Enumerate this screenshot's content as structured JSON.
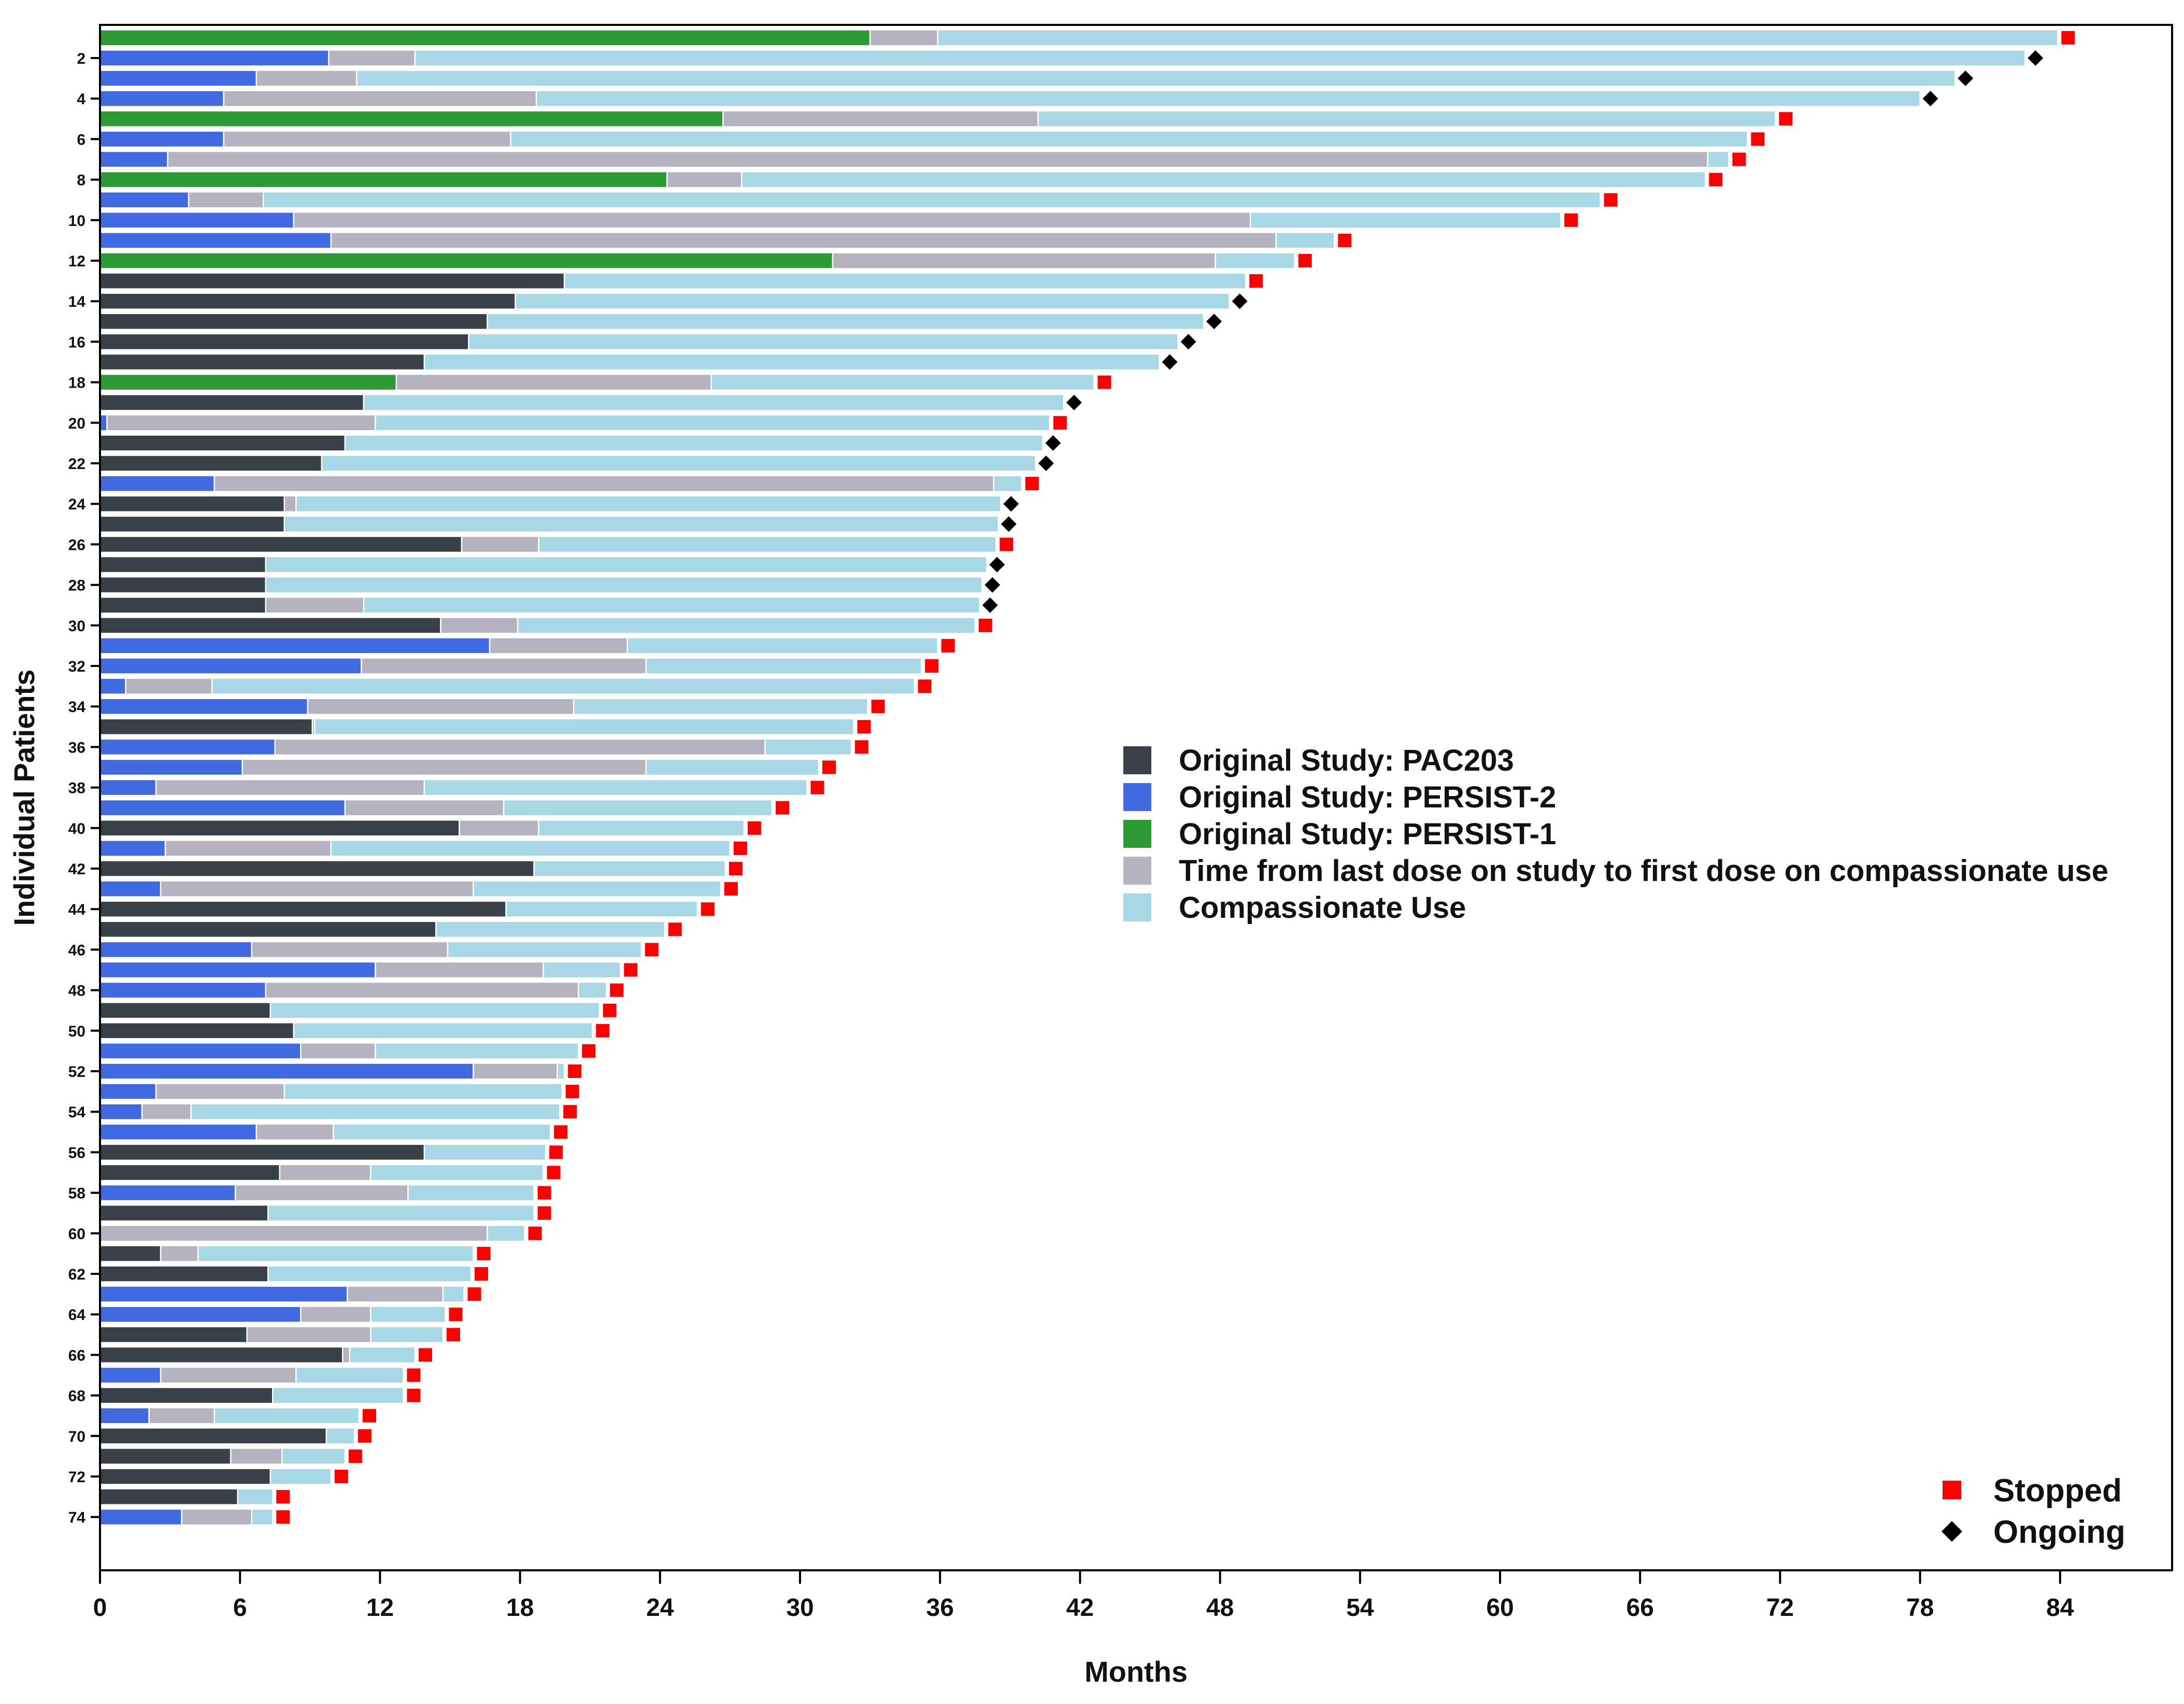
{
  "chart_data": {
    "type": "bar",
    "orientation": "horizontal-stacked",
    "title": "",
    "xlabel": "Months",
    "ylabel": "Individual Patients",
    "xlim": [
      0,
      88.8
    ],
    "xticks": [
      0,
      6,
      12,
      18,
      24,
      30,
      36,
      42,
      48,
      54,
      60,
      66,
      72,
      78,
      84
    ],
    "ytick_labels": [
      "2",
      "4",
      "6",
      "8",
      "10",
      "12",
      "14",
      "16",
      "18",
      "20",
      "22",
      "24",
      "26",
      "28",
      "30",
      "32",
      "34",
      "36",
      "38",
      "40",
      "42",
      "44",
      "46",
      "48",
      "50",
      "52",
      "54",
      "56",
      "58",
      "60",
      "62",
      "64",
      "66",
      "68",
      "70",
      "72",
      "74"
    ],
    "ytick_patients": [
      2,
      4,
      6,
      8,
      10,
      12,
      14,
      16,
      18,
      20,
      22,
      24,
      26,
      28,
      30,
      32,
      34,
      36,
      38,
      40,
      42,
      44,
      46,
      48,
      50,
      52,
      54,
      56,
      58,
      60,
      62,
      64,
      66,
      68,
      70,
      72,
      74
    ],
    "colors": {
      "PAC203": "#3a4048",
      "PERSIST-2": "#4169e1",
      "PERSIST-1": "#2e9a36",
      "gap": "#b4b3bf",
      "cu": "#a8d8e6",
      "stopped": "#ff0000",
      "ongoing": "#000000"
    },
    "legend": [
      {
        "key": "PAC203",
        "label": "Original Study: PAC203"
      },
      {
        "key": "PERSIST-2",
        "label": "Original Study: PERSIST-2"
      },
      {
        "key": "PERSIST-1",
        "label": "Original Study: PERSIST-1"
      },
      {
        "key": "gap",
        "label": "Time from last dose on study to first dose on compassionate use"
      },
      {
        "key": "cu",
        "label": "Compassionate Use"
      }
    ],
    "marker_legend": [
      {
        "key": "stopped",
        "label": "Stopped"
      },
      {
        "key": "ongoing",
        "label": "Ongoing"
      }
    ],
    "patients": [
      {
        "id": 1,
        "study": "PERSIST-1",
        "study_end": 33.0,
        "gap_end": 35.9,
        "cu_end": 83.9,
        "status": "stopped"
      },
      {
        "id": 2,
        "study": "PERSIST-2",
        "study_end": 9.8,
        "gap_end": 13.5,
        "cu_end": 82.5,
        "status": "ongoing"
      },
      {
        "id": 3,
        "study": "PERSIST-2",
        "study_end": 6.7,
        "gap_end": 11.0,
        "cu_end": 79.5,
        "status": "ongoing"
      },
      {
        "id": 4,
        "study": "PERSIST-2",
        "study_end": 5.3,
        "gap_end": 18.7,
        "cu_end": 78.0,
        "status": "ongoing"
      },
      {
        "id": 5,
        "study": "PERSIST-1",
        "study_end": 26.7,
        "gap_end": 40.2,
        "cu_end": 71.8,
        "status": "stopped"
      },
      {
        "id": 6,
        "study": "PERSIST-2",
        "study_end": 5.3,
        "gap_end": 17.6,
        "cu_end": 70.6,
        "status": "stopped"
      },
      {
        "id": 7,
        "study": "PERSIST-2",
        "study_end": 2.9,
        "gap_end": 68.9,
        "cu_end": 69.8,
        "status": "stopped"
      },
      {
        "id": 8,
        "study": "PERSIST-1",
        "study_end": 24.3,
        "gap_end": 27.5,
        "cu_end": 68.8,
        "status": "stopped"
      },
      {
        "id": 9,
        "study": "PERSIST-2",
        "study_end": 3.8,
        "gap_end": 7.0,
        "cu_end": 64.3,
        "status": "stopped"
      },
      {
        "id": 10,
        "study": "PERSIST-2",
        "study_end": 8.3,
        "gap_end": 49.3,
        "cu_end": 62.6,
        "status": "stopped"
      },
      {
        "id": 11,
        "study": "PERSIST-2",
        "study_end": 9.9,
        "gap_end": 50.4,
        "cu_end": 52.9,
        "status": "stopped"
      },
      {
        "id": 12,
        "study": "PERSIST-1",
        "study_end": 31.4,
        "gap_end": 47.8,
        "cu_end": 51.2,
        "status": "stopped"
      },
      {
        "id": 13,
        "study": "PAC203",
        "study_end": 19.9,
        "gap_end": 19.9,
        "cu_end": 49.1,
        "status": "stopped"
      },
      {
        "id": 14,
        "study": "PAC203",
        "study_end": 17.8,
        "gap_end": 17.8,
        "cu_end": 48.4,
        "status": "ongoing"
      },
      {
        "id": 15,
        "study": "PAC203",
        "study_end": 16.6,
        "gap_end": 16.6,
        "cu_end": 47.3,
        "status": "ongoing"
      },
      {
        "id": 16,
        "study": "PAC203",
        "study_end": 15.8,
        "gap_end": 15.8,
        "cu_end": 46.2,
        "status": "ongoing"
      },
      {
        "id": 17,
        "study": "PAC203",
        "study_end": 13.9,
        "gap_end": 13.9,
        "cu_end": 45.4,
        "status": "ongoing"
      },
      {
        "id": 18,
        "study": "PERSIST-1",
        "study_end": 12.7,
        "gap_end": 26.2,
        "cu_end": 42.6,
        "status": "stopped"
      },
      {
        "id": 19,
        "study": "PAC203",
        "study_end": 11.3,
        "gap_end": 11.3,
        "cu_end": 41.3,
        "status": "ongoing"
      },
      {
        "id": 20,
        "study": "PERSIST-2",
        "study_end": 0.3,
        "gap_end": 11.8,
        "cu_end": 40.7,
        "status": "stopped"
      },
      {
        "id": 21,
        "study": "PAC203",
        "study_end": 10.5,
        "gap_end": 10.5,
        "cu_end": 40.4,
        "status": "ongoing"
      },
      {
        "id": 22,
        "study": "PAC203",
        "study_end": 9.5,
        "gap_end": 9.5,
        "cu_end": 40.1,
        "status": "ongoing"
      },
      {
        "id": 23,
        "study": "PERSIST-2",
        "study_end": 4.9,
        "gap_end": 38.3,
        "cu_end": 39.5,
        "status": "stopped"
      },
      {
        "id": 24,
        "study": "PAC203",
        "study_end": 7.9,
        "gap_end": 8.4,
        "cu_end": 38.6,
        "status": "ongoing"
      },
      {
        "id": 25,
        "study": "PAC203",
        "study_end": 7.9,
        "gap_end": 7.9,
        "cu_end": 38.5,
        "status": "ongoing"
      },
      {
        "id": 26,
        "study": "PAC203",
        "study_end": 15.5,
        "gap_end": 18.8,
        "cu_end": 38.4,
        "status": "stopped"
      },
      {
        "id": 27,
        "study": "PAC203",
        "study_end": 7.1,
        "gap_end": 7.1,
        "cu_end": 38.0,
        "status": "ongoing"
      },
      {
        "id": 28,
        "study": "PAC203",
        "study_end": 7.1,
        "gap_end": 7.1,
        "cu_end": 37.8,
        "status": "ongoing"
      },
      {
        "id": 29,
        "study": "PAC203",
        "study_end": 7.1,
        "gap_end": 11.3,
        "cu_end": 37.7,
        "status": "ongoing"
      },
      {
        "id": 30,
        "study": "PAC203",
        "study_end": 14.6,
        "gap_end": 17.9,
        "cu_end": 37.5,
        "status": "stopped"
      },
      {
        "id": 31,
        "study": "PERSIST-2",
        "study_end": 16.7,
        "gap_end": 22.6,
        "cu_end": 35.9,
        "status": "stopped"
      },
      {
        "id": 32,
        "study": "PERSIST-2",
        "study_end": 11.2,
        "gap_end": 23.4,
        "cu_end": 35.2,
        "status": "stopped"
      },
      {
        "id": 33,
        "study": "PERSIST-2",
        "study_end": 1.1,
        "gap_end": 4.8,
        "cu_end": 34.9,
        "status": "stopped"
      },
      {
        "id": 34,
        "study": "PERSIST-2",
        "study_end": 8.9,
        "gap_end": 20.3,
        "cu_end": 32.9,
        "status": "stopped"
      },
      {
        "id": 35,
        "study": "PAC203",
        "study_end": 9.1,
        "gap_end": 9.2,
        "cu_end": 32.3,
        "status": "stopped"
      },
      {
        "id": 36,
        "study": "PERSIST-2",
        "study_end": 7.5,
        "gap_end": 28.5,
        "cu_end": 32.2,
        "status": "stopped"
      },
      {
        "id": 37,
        "study": "PERSIST-2",
        "study_end": 6.1,
        "gap_end": 23.4,
        "cu_end": 30.8,
        "status": "stopped"
      },
      {
        "id": 38,
        "study": "PERSIST-2",
        "study_end": 2.4,
        "gap_end": 13.9,
        "cu_end": 30.3,
        "status": "stopped"
      },
      {
        "id": 39,
        "study": "PERSIST-2",
        "study_end": 10.5,
        "gap_end": 17.3,
        "cu_end": 28.8,
        "status": "stopped"
      },
      {
        "id": 40,
        "study": "PAC203",
        "study_end": 15.4,
        "gap_end": 18.8,
        "cu_end": 27.6,
        "status": "stopped"
      },
      {
        "id": 41,
        "study": "PERSIST-2",
        "study_end": 2.8,
        "gap_end": 9.9,
        "cu_end": 27.0,
        "status": "stopped"
      },
      {
        "id": 42,
        "study": "PAC203",
        "study_end": 18.6,
        "gap_end": 18.6,
        "cu_end": 26.8,
        "status": "stopped"
      },
      {
        "id": 43,
        "study": "PERSIST-2",
        "study_end": 2.6,
        "gap_end": 16.0,
        "cu_end": 26.6,
        "status": "stopped"
      },
      {
        "id": 44,
        "study": "PAC203",
        "study_end": 17.4,
        "gap_end": 17.4,
        "cu_end": 25.6,
        "status": "stopped"
      },
      {
        "id": 45,
        "study": "PAC203",
        "study_end": 14.4,
        "gap_end": 14.4,
        "cu_end": 24.2,
        "status": "stopped"
      },
      {
        "id": 46,
        "study": "PERSIST-2",
        "study_end": 6.5,
        "gap_end": 14.9,
        "cu_end": 23.2,
        "status": "stopped"
      },
      {
        "id": 47,
        "study": "PERSIST-2",
        "study_end": 11.8,
        "gap_end": 19.0,
        "cu_end": 22.3,
        "status": "stopped"
      },
      {
        "id": 48,
        "study": "PERSIST-2",
        "study_end": 7.1,
        "gap_end": 20.5,
        "cu_end": 21.7,
        "status": "stopped"
      },
      {
        "id": 49,
        "study": "PAC203",
        "study_end": 7.3,
        "gap_end": 7.3,
        "cu_end": 21.4,
        "status": "stopped"
      },
      {
        "id": 50,
        "study": "PAC203",
        "study_end": 8.3,
        "gap_end": 8.3,
        "cu_end": 21.1,
        "status": "stopped"
      },
      {
        "id": 51,
        "study": "PERSIST-2",
        "study_end": 8.6,
        "gap_end": 11.8,
        "cu_end": 20.5,
        "status": "stopped"
      },
      {
        "id": 52,
        "study": "PERSIST-2",
        "study_end": 16.0,
        "gap_end": 19.6,
        "cu_end": 19.9,
        "status": "stopped"
      },
      {
        "id": 53,
        "study": "PERSIST-2",
        "study_end": 2.4,
        "gap_end": 7.9,
        "cu_end": 19.8,
        "status": "stopped"
      },
      {
        "id": 54,
        "study": "PERSIST-2",
        "study_end": 1.8,
        "gap_end": 3.9,
        "cu_end": 19.7,
        "status": "stopped"
      },
      {
        "id": 55,
        "study": "PERSIST-2",
        "study_end": 6.7,
        "gap_end": 10.0,
        "cu_end": 19.3,
        "status": "stopped"
      },
      {
        "id": 56,
        "study": "PAC203",
        "study_end": 13.9,
        "gap_end": 13.9,
        "cu_end": 19.1,
        "status": "stopped"
      },
      {
        "id": 57,
        "study": "PAC203",
        "study_end": 7.7,
        "gap_end": 11.6,
        "cu_end": 19.0,
        "status": "stopped"
      },
      {
        "id": 58,
        "study": "PERSIST-2",
        "study_end": 5.8,
        "gap_end": 13.2,
        "cu_end": 18.6,
        "status": "stopped"
      },
      {
        "id": 59,
        "study": "PAC203",
        "study_end": 7.2,
        "gap_end": 7.2,
        "cu_end": 18.6,
        "status": "stopped"
      },
      {
        "id": 60,
        "study": "PERSIST-2",
        "study_end": 0.0,
        "gap_end": 16.6,
        "cu_end": 18.2,
        "status": "stopped"
      },
      {
        "id": 61,
        "study": "PAC203",
        "study_end": 2.6,
        "gap_end": 4.2,
        "cu_end": 16.0,
        "status": "stopped"
      },
      {
        "id": 62,
        "study": "PAC203",
        "study_end": 7.2,
        "gap_end": 7.2,
        "cu_end": 15.9,
        "status": "stopped"
      },
      {
        "id": 63,
        "study": "PERSIST-2",
        "study_end": 10.6,
        "gap_end": 14.7,
        "cu_end": 15.6,
        "status": "stopped"
      },
      {
        "id": 64,
        "study": "PERSIST-2",
        "study_end": 8.6,
        "gap_end": 11.6,
        "cu_end": 14.8,
        "status": "stopped"
      },
      {
        "id": 65,
        "study": "PAC203",
        "study_end": 6.3,
        "gap_end": 11.6,
        "cu_end": 14.7,
        "status": "stopped"
      },
      {
        "id": 66,
        "study": "PAC203",
        "study_end": 10.4,
        "gap_end": 10.7,
        "cu_end": 13.5,
        "status": "stopped"
      },
      {
        "id": 67,
        "study": "PERSIST-2",
        "study_end": 2.6,
        "gap_end": 8.4,
        "cu_end": 13.0,
        "status": "stopped"
      },
      {
        "id": 68,
        "study": "PAC203",
        "study_end": 7.4,
        "gap_end": 7.4,
        "cu_end": 13.0,
        "status": "stopped"
      },
      {
        "id": 69,
        "study": "PERSIST-2",
        "study_end": 2.1,
        "gap_end": 4.9,
        "cu_end": 11.1,
        "status": "stopped"
      },
      {
        "id": 70,
        "study": "PAC203",
        "study_end": 9.7,
        "gap_end": 9.7,
        "cu_end": 10.9,
        "status": "stopped"
      },
      {
        "id": 71,
        "study": "PAC203",
        "study_end": 5.6,
        "gap_end": 7.8,
        "cu_end": 10.5,
        "status": "stopped"
      },
      {
        "id": 72,
        "study": "PAC203",
        "study_end": 7.3,
        "gap_end": 7.3,
        "cu_end": 9.9,
        "status": "stopped"
      },
      {
        "id": 73,
        "study": "PAC203",
        "study_end": 5.9,
        "gap_end": 5.9,
        "cu_end": 7.4,
        "status": "stopped"
      },
      {
        "id": 74,
        "study": "PERSIST-2",
        "study_end": 3.5,
        "gap_end": 6.5,
        "cu_end": 7.4,
        "status": "stopped"
      }
    ]
  }
}
